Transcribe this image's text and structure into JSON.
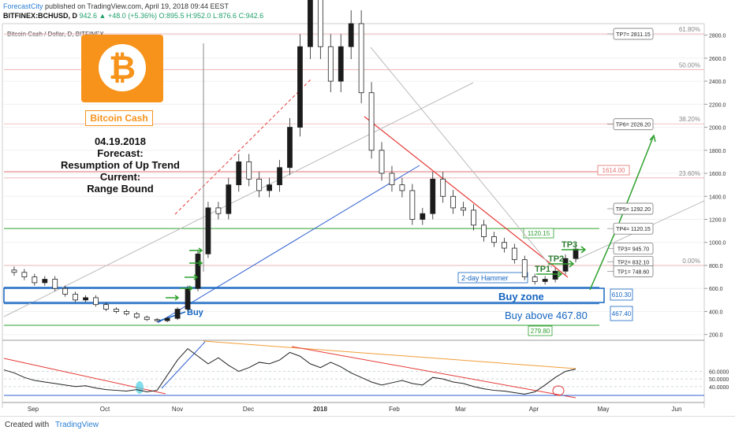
{
  "header": {
    "site": "ForecastCity",
    "published": "published on TradingView.com, April 19, 2018 09:44 EEST",
    "symbol": "BITFINEX:BCHUSD, D",
    "quote": "942.6 ▲ +48.0 (+5.36%) O:895.5 H:952.0 L:876.6 C:942.6"
  },
  "chart_title": "Bitcoin Cash / Dollar, D, BITFINEX",
  "logo": {
    "label": "Bitcoin Cash",
    "accent": "#f7931a"
  },
  "forecast_text": [
    "04.19.2018",
    "Forecast:",
    "Resumption of Up Trend",
    "Current:",
    "Range Bound"
  ],
  "footer": {
    "created": "Created with",
    "brand": "TradingView"
  },
  "chart_data": [
    {
      "type": "line",
      "title": "Bitcoin Cash / Dollar, D, BITFINEX",
      "ylim": [
        150,
        2900
      ],
      "yticks": [
        200,
        400,
        600,
        800,
        1000,
        1200,
        1400,
        1600,
        1800,
        2000,
        2200,
        2400,
        2600,
        2800
      ],
      "x_labels": [
        "Sep",
        "Oct",
        "Nov",
        "Dec",
        "2018",
        "Feb",
        "Mar",
        "Apr",
        "May",
        "Jun"
      ],
      "series": [
        {
          "values": [
            760,
            740,
            700,
            650,
            680,
            600,
            550,
            500,
            520,
            460,
            420,
            400,
            380,
            350,
            330,
            320,
            340,
            420,
            600,
            900,
            1300,
            1250,
            1500,
            1700,
            1550,
            1450,
            1500,
            1650,
            2000,
            2700,
            3200,
            2700,
            2400,
            2700,
            2900,
            2300,
            1800,
            1600,
            1500,
            1450,
            1200,
            1250,
            1550,
            1400,
            1300,
            1280,
            1150,
            1050,
            1000,
            950,
            850,
            700,
            660,
            680,
            750,
            860,
            942
          ]
        }
      ],
      "fib_levels": [
        {
          "label": "61.80%",
          "value": 2811
        },
        {
          "label": "50.00%",
          "value": 2500
        },
        {
          "label": "38.20%",
          "value": 2030
        },
        {
          "label": "23.60%",
          "value": 1560
        },
        {
          "label": "0.00%",
          "value": 800
        }
      ],
      "targets": [
        {
          "label": "TP7= 2811.15",
          "value": 2811.15
        },
        {
          "label": "TP6= 2026.20",
          "value": 2026.2
        },
        {
          "label": "TP5= 1292.20",
          "value": 1292.2
        },
        {
          "label": "TP4= 1120.15",
          "value": 1120.15
        },
        {
          "label": "TP3= 945.70",
          "value": 945.7
        },
        {
          "label": "TP2= 832.10",
          "value": 832.1
        },
        {
          "label": "TP1= 748.60",
          "value": 748.6
        }
      ],
      "levels": [
        {
          "label": "1614.00",
          "value": 1614
        },
        {
          "label": "1120.15",
          "value": 1120.15
        },
        {
          "label": "610.30",
          "value": 610.3
        },
        {
          "label": "467.40",
          "value": 467.4
        },
        {
          "label": "279.80",
          "value": 279.8
        }
      ],
      "annotations": {
        "buy": "Buy",
        "buy_zone": "Buy  zone",
        "buy_above": "Buy above 467.80",
        "hammer": "2-day Hammer",
        "tp1": "TP1",
        "tp2": "TP2",
        "tp3": "TP3"
      }
    },
    {
      "type": "line",
      "title": "",
      "ylim": [
        20,
        100
      ],
      "yticks": [
        40,
        50,
        60
      ],
      "ytick_labels": [
        "40.0000",
        "50.0000",
        "60.0000"
      ],
      "series": [
        {
          "values": [
            62,
            58,
            52,
            48,
            46,
            44,
            42,
            40,
            41,
            38,
            36,
            35,
            34,
            36,
            33,
            35,
            55,
            75,
            90,
            80,
            70,
            78,
            68,
            60,
            65,
            72,
            70,
            75,
            85,
            80,
            70,
            65,
            72,
            66,
            58,
            52,
            46,
            42,
            45,
            48,
            44,
            42,
            52,
            50,
            46,
            44,
            40,
            37,
            35,
            34,
            32,
            30,
            33,
            42,
            52,
            60,
            63
          ]
        }
      ]
    }
  ]
}
